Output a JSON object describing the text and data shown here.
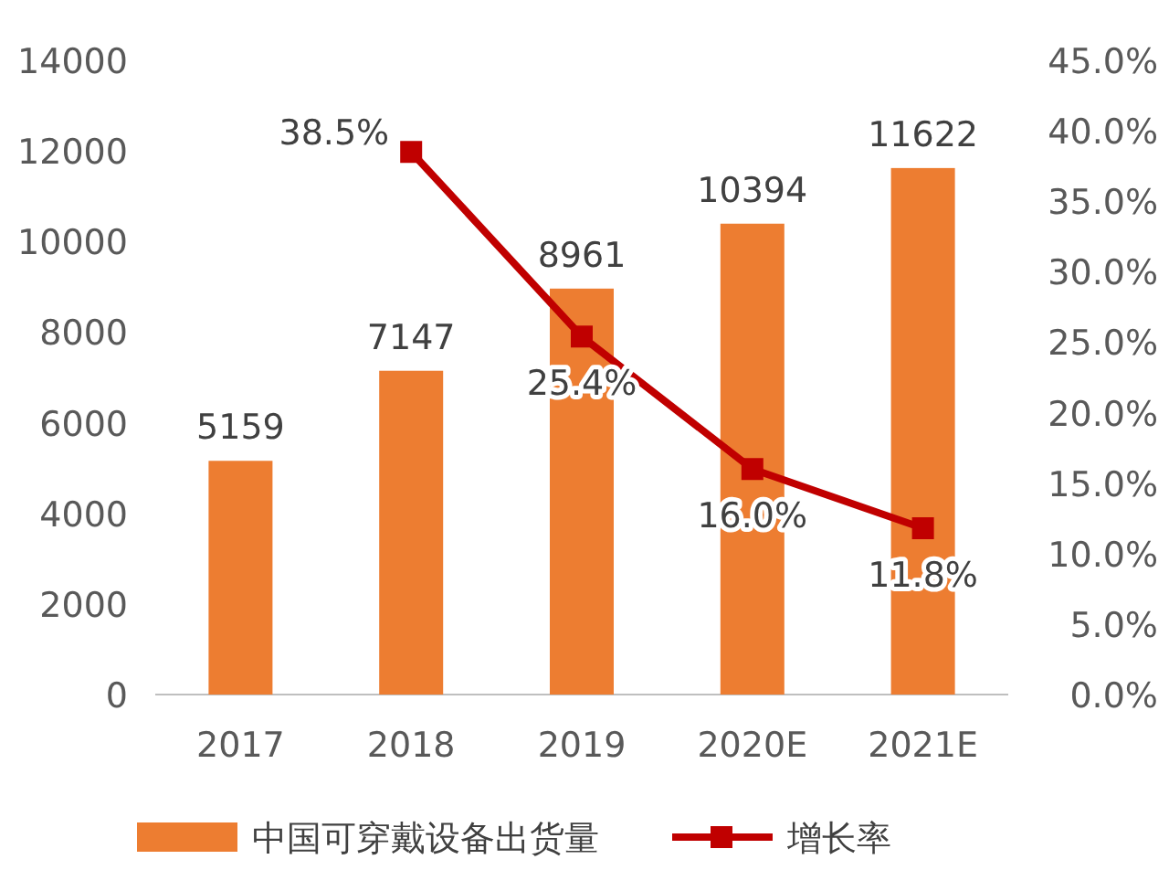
{
  "chart_data": {
    "type": "bar",
    "categories": [
      "2017",
      "2018",
      "2019",
      "2020E",
      "2021E"
    ],
    "series": [
      {
        "name": "中国可穿戴设备出货量",
        "color": "#ed7d31",
        "values": [
          5159,
          7147,
          8961,
          10394,
          11622
        ]
      },
      {
        "name": "增长率",
        "type": "line",
        "axis": "y2",
        "color": "#c00000",
        "values": [
          null,
          38.5,
          25.4,
          16.0,
          11.8
        ],
        "value_labels": [
          null,
          "38.5%",
          "25.4%",
          "16.0%",
          "11.8%"
        ]
      }
    ],
    "ylim": [
      0,
      14000
    ],
    "yticks": [
      0,
      2000,
      4000,
      6000,
      8000,
      10000,
      12000,
      14000
    ],
    "y2lim": [
      0,
      45
    ],
    "y2ticks": [
      {
        "value": 0,
        "label": "0.0%"
      },
      {
        "value": 5,
        "label": "5.0%"
      },
      {
        "value": 10,
        "label": "10.0%"
      },
      {
        "value": 15,
        "label": "15.0%"
      },
      {
        "value": 20,
        "label": "20.0%"
      },
      {
        "value": 25,
        "label": "25.0%"
      },
      {
        "value": 30,
        "label": "30.0%"
      },
      {
        "value": 35,
        "label": "35.0%"
      },
      {
        "value": 40,
        "label": "40.0%"
      },
      {
        "value": 45,
        "label": "45.0%"
      }
    ],
    "data_labels": true,
    "marker": "square",
    "legend": "bottom",
    "grid": false
  }
}
